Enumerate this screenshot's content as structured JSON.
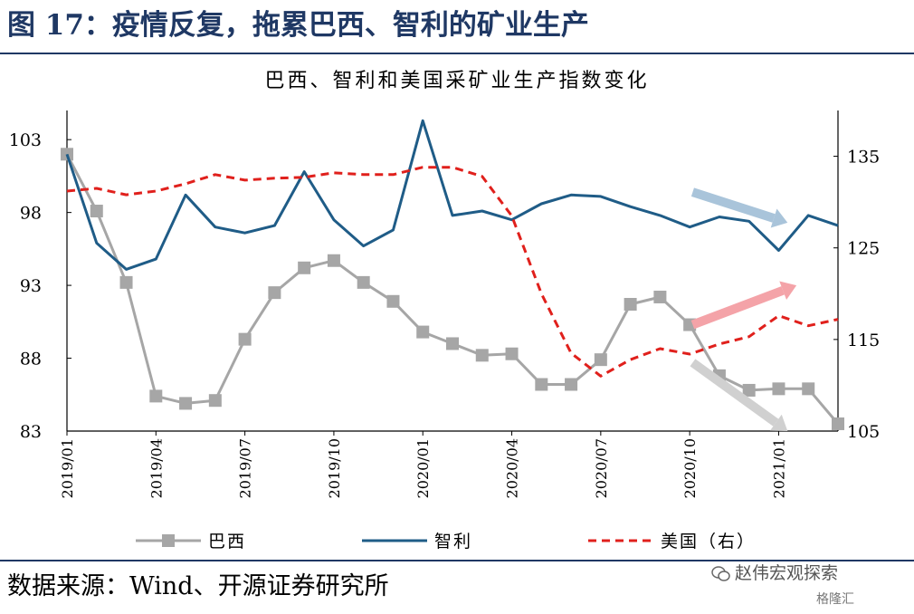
{
  "figure": {
    "title": "图 17：疫情反复，拖累巴西、智利的矿业生产",
    "source": "数据来源：Wind、开源证券研究所",
    "watermark": "赵伟宏观探索",
    "watermark2": "格隆汇"
  },
  "chart_data": {
    "type": "line",
    "title": "巴西、智利和美国采矿业生产指数变化",
    "x": [
      "2019/01",
      "2019/02",
      "2019/03",
      "2019/04",
      "2019/05",
      "2019/06",
      "2019/07",
      "2019/08",
      "2019/09",
      "2019/10",
      "2019/11",
      "2019/12",
      "2020/01",
      "2020/02",
      "2020/03",
      "2020/04",
      "2020/05",
      "2020/06",
      "2020/07",
      "2020/08",
      "2020/09",
      "2020/10",
      "2020/11",
      "2020/12",
      "2021/01",
      "2021/02",
      "2021/03"
    ],
    "x_tick_labels": [
      "2019/01",
      "2019/04",
      "2019/07",
      "2019/10",
      "2020/01",
      "2020/04",
      "2020/07",
      "2020/10",
      "2021/01"
    ],
    "left_axis": {
      "ylim": [
        83,
        105
      ],
      "ticks": [
        83,
        88,
        93,
        98,
        103
      ]
    },
    "right_axis": {
      "ylim": [
        105,
        140
      ],
      "ticks": [
        105,
        115,
        125,
        135
      ]
    },
    "series": [
      {
        "name": "巴西",
        "axis": "left",
        "color": "#a6a6a6",
        "style": "solid-square-markers",
        "values": [
          102.0,
          98.1,
          93.2,
          85.4,
          84.9,
          85.1,
          89.3,
          92.5,
          94.2,
          94.7,
          93.2,
          91.9,
          89.8,
          89.0,
          88.2,
          88.3,
          86.2,
          86.2,
          87.9,
          91.7,
          92.2,
          90.3,
          86.8,
          85.8,
          85.9,
          85.9,
          83.5
        ]
      },
      {
        "name": "智利",
        "axis": "left",
        "color": "#1f5c87",
        "style": "solid",
        "values": [
          102.0,
          95.9,
          94.1,
          94.8,
          99.2,
          97.0,
          96.6,
          97.1,
          100.8,
          97.5,
          95.7,
          96.8,
          104.3,
          97.8,
          98.1,
          97.5,
          98.6,
          99.2,
          99.1,
          98.4,
          97.8,
          97.0,
          97.7,
          97.4,
          95.4,
          97.8,
          97.1
        ]
      },
      {
        "name": "美国（右）",
        "axis": "right",
        "color": "#e0201c",
        "style": "dashed",
        "values": [
          131.2,
          131.5,
          130.8,
          131.2,
          132.0,
          133.0,
          132.4,
          132.6,
          132.7,
          133.2,
          133.0,
          133.0,
          133.8,
          133.8,
          132.8,
          128.5,
          120.0,
          113.5,
          111.0,
          112.8,
          114.0,
          113.4,
          114.5,
          115.3,
          117.6,
          116.5,
          117.2
        ]
      }
    ],
    "legend_position": "bottom",
    "annotations": [
      {
        "kind": "arrow",
        "color": "#a9c4da",
        "direction": "down",
        "from_index": 21.1,
        "to_index": 24.3,
        "from_value": 99.4,
        "to_value": 97.3,
        "axis": "left"
      },
      {
        "kind": "arrow",
        "color": "#f4a3a8",
        "direction": "up",
        "from_index": 21.1,
        "to_index": 24.6,
        "from_value": 90.3,
        "to_value": 93.0,
        "axis": "left"
      },
      {
        "kind": "arrow",
        "color": "#d0d0d0",
        "direction": "down",
        "from_index": 21.1,
        "to_index": 24.3,
        "from_value": 87.7,
        "to_value": 83.0,
        "axis": "left"
      }
    ]
  }
}
